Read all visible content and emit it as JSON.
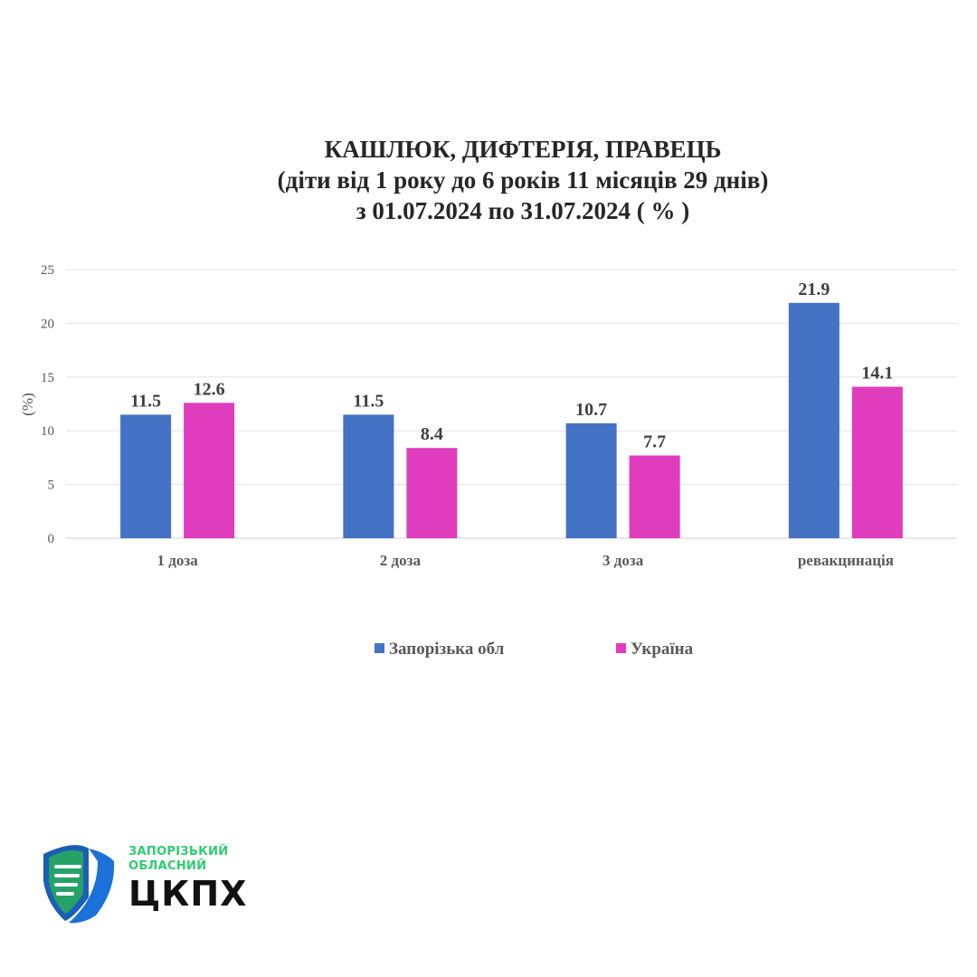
{
  "chart_data": {
    "type": "bar",
    "title_lines": [
      "КАШЛЮК, ДИФТЕРІЯ, ПРАВЕЦЬ",
      "(діти від 1 року до 6 років 11 місяців 29 днів)",
      "з 01.07.2024 по 31.07.2024 ( % )"
    ],
    "ylabel": "(%)",
    "xlabel": "",
    "ylim": [
      0,
      25
    ],
    "yticks": [
      0,
      5,
      10,
      15,
      20,
      25
    ],
    "categories": [
      "1 доза",
      "2 доза",
      "3 доза",
      "ревакцинація"
    ],
    "series": [
      {
        "name": "Запорізька обл",
        "color": "#4472c4",
        "values": [
          11.5,
          11.5,
          10.7,
          21.9
        ]
      },
      {
        "name": "Україна",
        "color": "#e03cbe",
        "values": [
          12.6,
          8.4,
          7.7,
          14.1
        ]
      }
    ],
    "grid": true,
    "legend_position": "bottom"
  },
  "logo": {
    "line1": "ЗАПОРІЗЬКИЙ",
    "line2": "ОБЛАСНИЙ",
    "main": "ЦКПХ"
  }
}
